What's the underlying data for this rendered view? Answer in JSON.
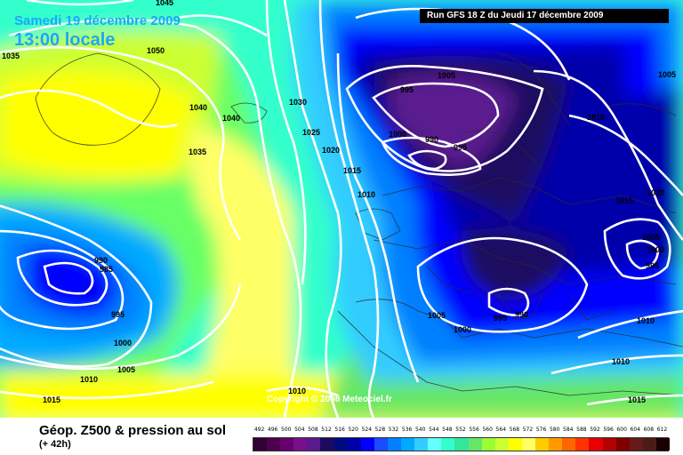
{
  "header": {
    "date_label": "Samedi 19 décembre 2009",
    "time_label": "13:00 locale",
    "run_label": "Run GFS 18 Z du Jeudi 17 décembre 2009"
  },
  "footer": {
    "title": "Géop. Z500 & pression au sol",
    "forecast_hours": "(+ 42h)",
    "copyright": "Copyright © 2008 Meteociel.fr"
  },
  "legend": {
    "values": [
      "492",
      "496",
      "500",
      "504",
      "508",
      "512",
      "516",
      "520",
      "524",
      "528",
      "532",
      "536",
      "540",
      "544",
      "548",
      "552",
      "556",
      "560",
      "564",
      "568",
      "572",
      "576",
      "580",
      "584",
      "588",
      "592",
      "596",
      "600",
      "604",
      "608",
      "612"
    ],
    "colors": [
      "#330033",
      "#4d0050",
      "#66006e",
      "#7a0f8c",
      "#5a1a8f",
      "#1a0a60",
      "#000a80",
      "#0000aa",
      "#0000ff",
      "#1a4bff",
      "#0080ff",
      "#00aaff",
      "#33ccff",
      "#66ffff",
      "#33ffcc",
      "#33e699",
      "#66e666",
      "#99ff33",
      "#ccff33",
      "#ffff00",
      "#ffff66",
      "#ffcc00",
      "#ff9900",
      "#ff6600",
      "#ff3300",
      "#e60000",
      "#b30000",
      "#800000",
      "#661a1a",
      "#4d1a1a",
      "#1a0000"
    ]
  },
  "isobar_labels": [
    "1045",
    "1035",
    "1050",
    "1040",
    "1040",
    "1035",
    "1030",
    "1025",
    "1020",
    "1015",
    "1010",
    "1005",
    "995",
    "1000",
    "990",
    "995",
    "1010",
    "1005",
    "1015",
    "1020",
    "1005",
    "1000",
    "995",
    "990",
    "985",
    "995",
    "1000",
    "1005",
    "1010",
    "1015",
    "1005",
    "1000",
    "995",
    "990",
    "1010",
    "1010",
    "1015",
    "1010"
  ]
}
